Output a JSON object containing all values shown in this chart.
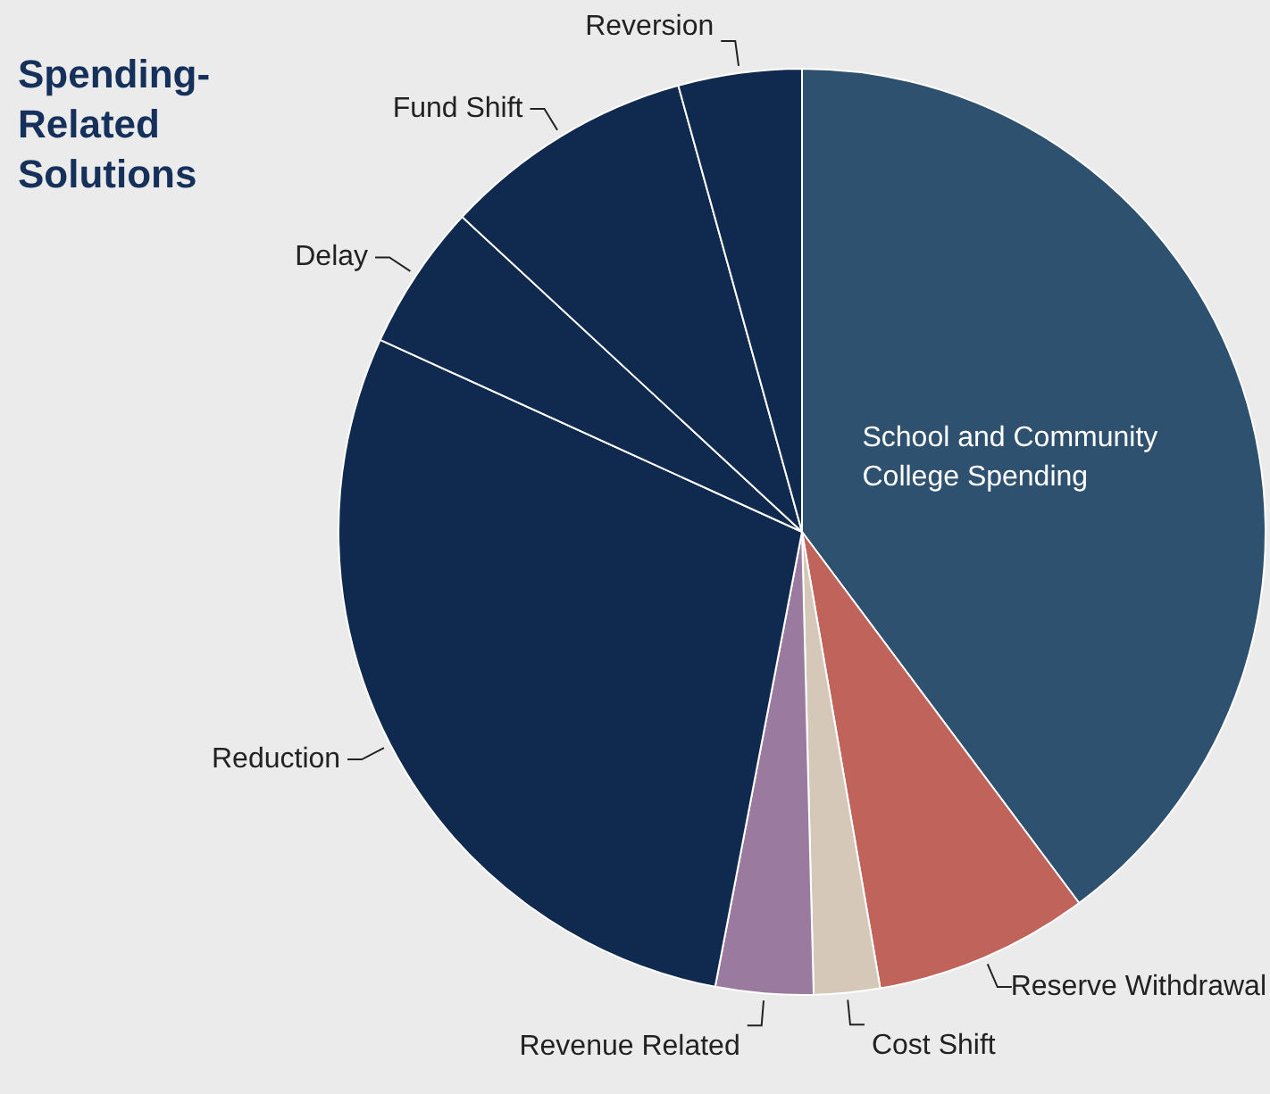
{
  "chart_data": {
    "type": "pie",
    "title": "Spending-Related Solutions",
    "categories": [
      "School and Community College Spending",
      "Reserve Withdrawal",
      "Cost Shift",
      "Revenue Related",
      "Reduction",
      "Delay",
      "Fund Shift",
      "Reversion"
    ],
    "values": [
      39.8,
      7.5,
      2.3,
      3.4,
      28.8,
      5.1,
      8.8,
      4.3
    ],
    "colors": [
      "#2e5170",
      "#c0635a",
      "#d5c8b8",
      "#9b7aa0",
      "#0f2a4e",
      "#0f2a4e",
      "#0f2a4e",
      "#0f2a4e"
    ],
    "legend": false
  }
}
